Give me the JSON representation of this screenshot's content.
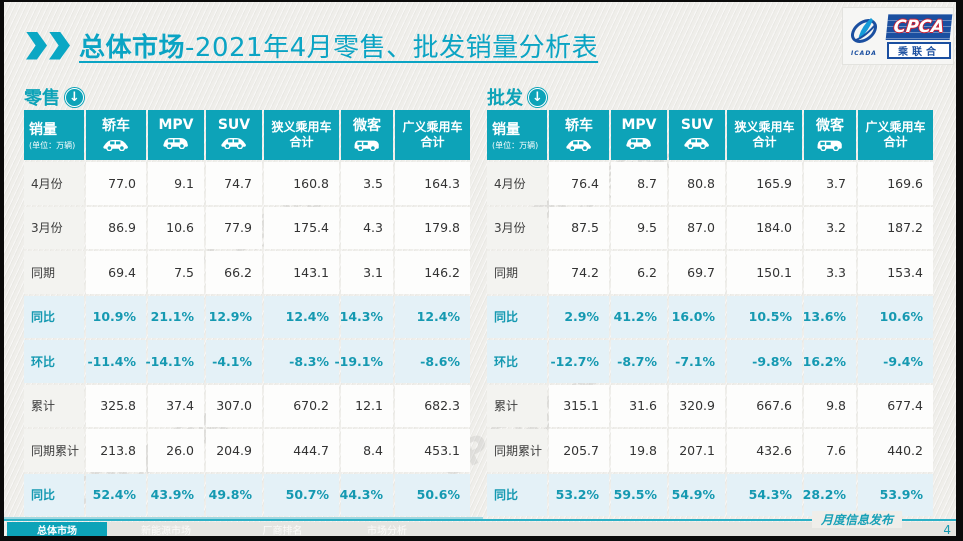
{
  "page": {
    "title_bold": "总体市场",
    "title_rest": "-2021年4月零售、批发销量分析表",
    "watermark_text": "CPCA乘联",
    "release_label": "月度信息发布",
    "page_number": "4"
  },
  "logo": {
    "name_en": "CPCA",
    "name_cn": "乘联合",
    "sub_text": "ICADA"
  },
  "colors": {
    "teal_header": "#0da3b8",
    "teal_title": "#0ba4c4",
    "highlight_bg": "#e4f1f7",
    "highlight_text": "#1599b1",
    "navy": "#1b4fa0",
    "red": "#cf2030"
  },
  "columns": [
    {
      "label": "销量",
      "sub": "(单位：万辆)",
      "icon": null
    },
    {
      "label": "轿车",
      "icon": "sedan-car-icon"
    },
    {
      "label": "MPV",
      "icon": "mpv-car-icon"
    },
    {
      "label": "SUV",
      "icon": "suv-car-icon"
    },
    {
      "label": "狭义乘用车合计",
      "lines": [
        "狭义乘用车",
        "合计"
      ],
      "icon": null
    },
    {
      "label": "微客",
      "icon": "microvan-icon"
    },
    {
      "label": "广义乘用车合计",
      "lines": [
        "广义乘用车",
        "合计"
      ],
      "icon": null
    }
  ],
  "tables": [
    {
      "section_label": "零售",
      "rows": [
        {
          "label": "4月份",
          "highlight": false,
          "values": [
            "77.0",
            "9.1",
            "74.7",
            "160.8",
            "3.5",
            "164.3"
          ]
        },
        {
          "label": "3月份",
          "highlight": false,
          "values": [
            "86.9",
            "10.6",
            "77.9",
            "175.4",
            "4.3",
            "179.8"
          ]
        },
        {
          "label": "同期",
          "highlight": false,
          "values": [
            "69.4",
            "7.5",
            "66.2",
            "143.1",
            "3.1",
            "146.2"
          ]
        },
        {
          "label": "同比",
          "highlight": true,
          "values": [
            "10.9%",
            "21.1%",
            "12.9%",
            "12.4%",
            "14.3%",
            "12.4%"
          ]
        },
        {
          "label": "环比",
          "highlight": true,
          "values": [
            "-11.4%",
            "-14.1%",
            "-4.1%",
            "-8.3%",
            "-19.1%",
            "-8.6%"
          ]
        },
        {
          "label": "累计",
          "highlight": false,
          "values": [
            "325.8",
            "37.4",
            "307.0",
            "670.2",
            "12.1",
            "682.3"
          ]
        },
        {
          "label": "同期累计",
          "highlight": false,
          "values": [
            "213.8",
            "26.0",
            "204.9",
            "444.7",
            "8.4",
            "453.1"
          ]
        },
        {
          "label": "同比",
          "highlight": true,
          "values": [
            "52.4%",
            "43.9%",
            "49.8%",
            "50.7%",
            "44.3%",
            "50.6%"
          ]
        }
      ]
    },
    {
      "section_label": "批发",
      "rows": [
        {
          "label": "4月份",
          "highlight": false,
          "values": [
            "76.4",
            "8.7",
            "80.8",
            "165.9",
            "3.7",
            "169.6"
          ]
        },
        {
          "label": "3月份",
          "highlight": false,
          "values": [
            "87.5",
            "9.5",
            "87.0",
            "184.0",
            "3.2",
            "187.2"
          ]
        },
        {
          "label": "同期",
          "highlight": false,
          "values": [
            "74.2",
            "6.2",
            "69.7",
            "150.1",
            "3.3",
            "153.4"
          ]
        },
        {
          "label": "同比",
          "highlight": true,
          "values": [
            "2.9%",
            "41.2%",
            "16.0%",
            "10.5%",
            "13.6%",
            "10.6%"
          ]
        },
        {
          "label": "环比",
          "highlight": true,
          "values": [
            "-12.7%",
            "-8.7%",
            "-7.1%",
            "-9.8%",
            "16.2%",
            "-9.4%"
          ]
        },
        {
          "label": "累计",
          "highlight": false,
          "values": [
            "315.1",
            "31.6",
            "320.9",
            "667.6",
            "9.8",
            "677.4"
          ]
        },
        {
          "label": "同期累计",
          "highlight": false,
          "values": [
            "205.7",
            "19.8",
            "207.1",
            "432.6",
            "7.6",
            "440.2"
          ]
        },
        {
          "label": "同比",
          "highlight": true,
          "values": [
            "53.2%",
            "59.5%",
            "54.9%",
            "54.3%",
            "28.2%",
            "53.9%"
          ]
        }
      ]
    }
  ],
  "footer": {
    "tabs": [
      {
        "label": "总体市场",
        "active": true
      },
      {
        "label": "新能源市场",
        "active": false
      },
      {
        "label": "厂商排名",
        "active": false
      },
      {
        "label": "市场分析",
        "active": false
      }
    ]
  }
}
